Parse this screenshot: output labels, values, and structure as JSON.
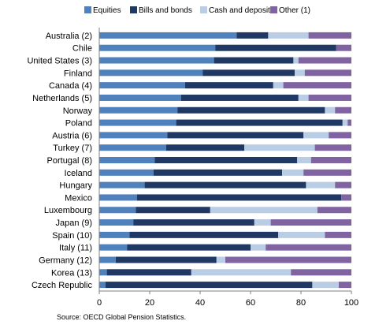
{
  "chart_data": {
    "type": "bar",
    "orientation": "horizontal",
    "stacked": true,
    "categories": [
      "Australia (2)",
      "Chile",
      "United States (3)",
      "Finland",
      "Canada (4)",
      "Netherlands (5)",
      "Norway",
      "Poland",
      "Austria (6)",
      "Turkey (7)",
      "Portugal (8)",
      "Iceland",
      "Hungary",
      "Mexico",
      "Luxembourg",
      "Japan (9)",
      "Spain (10)",
      "Italy (11)",
      "Germany (12)",
      "Korea (13)",
      "Czech Republic"
    ],
    "series": [
      {
        "name": "Equities",
        "color": "#4f81bd",
        "values": [
          54.5,
          46,
          45.5,
          41,
          34,
          32.5,
          31,
          30.5,
          27,
          26.5,
          22,
          21.5,
          18,
          15,
          14.5,
          13.5,
          12,
          11,
          6.5,
          3,
          2.5
        ]
      },
      {
        "name": "Bills and bonds",
        "color": "#1f3864",
        "values": [
          12.5,
          48,
          31.5,
          36.5,
          35,
          46.5,
          58.5,
          66,
          54,
          31,
          56.5,
          51,
          64,
          81,
          29.5,
          48,
          59,
          49,
          40,
          33.5,
          82
        ]
      },
      {
        "name": "Cash and deposits",
        "color": "#b9cde5",
        "values": [
          16,
          0,
          2,
          4,
          4,
          4,
          4,
          2,
          10,
          28,
          5.5,
          8.5,
          11.5,
          0,
          42.5,
          6.5,
          18.5,
          6,
          3.5,
          39.5,
          10.5
        ]
      },
      {
        "name": "Other (1)",
        "color": "#8064a2",
        "values": [
          17,
          6,
          21,
          18.5,
          27,
          17,
          6.5,
          1.5,
          9,
          14.5,
          16,
          19,
          6.5,
          4,
          13.5,
          32,
          10.5,
          34,
          50,
          24,
          5
        ]
      }
    ],
    "xlim": [
      0,
      100
    ],
    "xticks": [
      "0",
      "20",
      "40",
      "60",
      "80",
      "100"
    ],
    "grid": false,
    "legend_position": "top"
  },
  "source_note": "Source: OECD Global Pension Statistics."
}
